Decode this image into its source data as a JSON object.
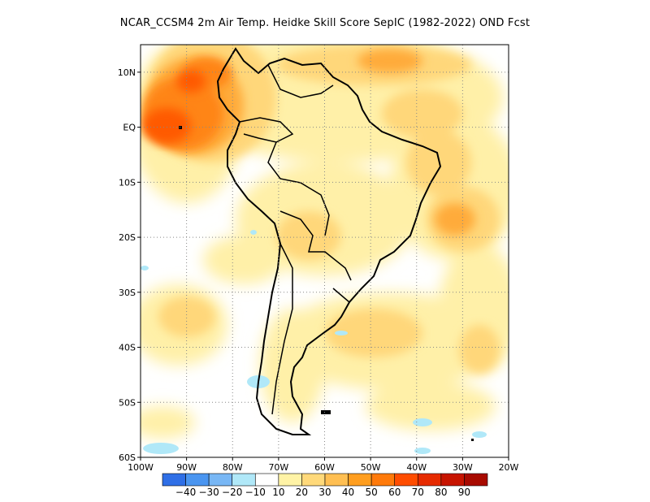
{
  "title": "NCAR_CCSM4  2m Air Temp. Heidke Skill Score SepIC (1982-2022) OND Fcst",
  "map": {
    "lon_range": [
      -100,
      -20
    ],
    "lat_range": [
      -60,
      15
    ],
    "lat_ticks": [
      {
        "value": 10,
        "label": "10N"
      },
      {
        "value": 0,
        "label": "EQ"
      },
      {
        "value": -10,
        "label": "10S"
      },
      {
        "value": -20,
        "label": "20S"
      },
      {
        "value": -30,
        "label": "30S"
      },
      {
        "value": -40,
        "label": "40S"
      },
      {
        "value": -50,
        "label": "50S"
      },
      {
        "value": -60,
        "label": "60S"
      }
    ],
    "lon_ticks": [
      {
        "value": -100,
        "label": "100W"
      },
      {
        "value": -90,
        "label": "90W"
      },
      {
        "value": -80,
        "label": "80W"
      },
      {
        "value": -70,
        "label": "70W"
      },
      {
        "value": -60,
        "label": "60W"
      },
      {
        "value": -50,
        "label": "50W"
      },
      {
        "value": -40,
        "label": "40W"
      },
      {
        "value": -30,
        "label": "30W"
      },
      {
        "value": -20,
        "label": "20W"
      }
    ],
    "grid": "dotted"
  },
  "colorbar": {
    "colors": [
      "#2f6fe6",
      "#4a95f0",
      "#78b7f5",
      "#b0e8f8",
      "#ffffff",
      "#fff3a6",
      "#ffd97a",
      "#ffbf52",
      "#ff9e1f",
      "#ff7a0a",
      "#ff4d00",
      "#e62b00",
      "#c71400",
      "#a80a00"
    ],
    "labels": [
      "-40",
      "-30",
      "-20",
      "-10",
      "10",
      "20",
      "30",
      "40",
      "50",
      "60",
      "70",
      "80",
      "90"
    ]
  }
}
